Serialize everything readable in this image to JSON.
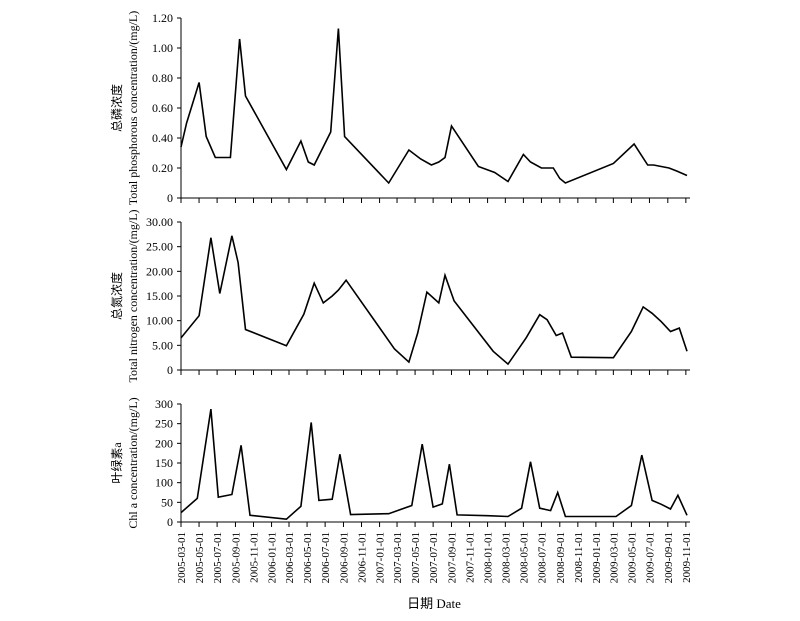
{
  "chart_data": [
    {
      "type": "line",
      "ylabel_cn": "总磷浓度",
      "ylabel": "Total phosphorous concentration/(mg/L)",
      "ylim": [
        0,
        1.2
      ],
      "yticks": [
        "0",
        "0.20",
        "0.40",
        "0.60",
        "0.80",
        "1.00",
        "1.20"
      ],
      "series": [
        {
          "x": [
            "2005-03-01",
            "2005-03-20",
            "2005-05-01",
            "2005-05-25",
            "2005-06-25",
            "2005-08-15",
            "2005-09-15",
            "2005-10-05",
            "2006-02-20",
            "2006-04-10",
            "2006-05-05",
            "2006-05-25",
            "2006-07-20",
            "2006-08-15",
            "2006-09-05",
            "2007-02-01",
            "2007-04-10",
            "2007-05-20",
            "2007-06-25",
            "2007-07-20",
            "2007-08-10",
            "2007-09-01",
            "2007-12-01",
            "2008-01-25",
            "2008-03-10",
            "2008-05-01",
            "2008-05-25",
            "2008-07-01",
            "2008-08-10",
            "2008-09-01",
            "2008-09-20",
            "2009-03-01",
            "2009-05-10",
            "2009-06-25",
            "2009-07-15",
            "2009-08-10",
            "2009-09-05",
            "2009-10-01",
            "2009-11-05"
          ],
          "values": [
            0.34,
            0.5,
            0.77,
            0.41,
            0.27,
            0.27,
            1.06,
            0.68,
            0.19,
            0.38,
            0.24,
            0.22,
            0.44,
            1.13,
            0.41,
            0.1,
            0.32,
            0.26,
            0.22,
            0.24,
            0.27,
            0.48,
            0.21,
            0.17,
            0.11,
            0.29,
            0.24,
            0.2,
            0.2,
            0.13,
            0.1,
            0.23,
            0.36,
            0.22,
            0.22,
            0.21,
            0.2,
            0.18,
            0.15
          ]
        }
      ]
    },
    {
      "type": "line",
      "ylabel_cn": "总氮浓度",
      "ylabel": "Total nitrogen concentration/(mg/L)",
      "ylim": [
        0,
        30
      ],
      "yticks": [
        "0",
        "5.00",
        "10.00",
        "15.00",
        "20.00",
        "25.00",
        "30.00"
      ],
      "series": [
        {
          "x": [
            "2005-03-01",
            "2005-05-01",
            "2005-06-10",
            "2005-07-10",
            "2005-08-20",
            "2005-09-10",
            "2005-10-05",
            "2006-02-20",
            "2006-04-20",
            "2006-05-25",
            "2006-06-25",
            "2006-07-25",
            "2006-08-15",
            "2006-09-10",
            "2007-02-20",
            "2007-04-10",
            "2007-05-10",
            "2007-06-10",
            "2007-07-20",
            "2007-08-10",
            "2007-09-10",
            "2008-01-20",
            "2008-03-10",
            "2008-05-10",
            "2008-06-25",
            "2008-07-20",
            "2008-08-20",
            "2008-09-10",
            "2008-10-10",
            "2009-03-01",
            "2009-05-01",
            "2009-06-10",
            "2009-07-10",
            "2009-08-10",
            "2009-09-10",
            "2009-10-10",
            "2009-11-05"
          ],
          "values": [
            6.5,
            11,
            26.8,
            15.5,
            27.2,
            21.8,
            8.2,
            4.9,
            11.3,
            17.6,
            13.6,
            15,
            16.2,
            18.2,
            4.3,
            1.6,
            7.5,
            15.8,
            13.6,
            19.2,
            14,
            3.8,
            1.2,
            6.5,
            11.2,
            10.2,
            7,
            7.5,
            2.6,
            2.5,
            7.8,
            12.8,
            11.5,
            9.8,
            7.8,
            8.5,
            3.8
          ]
        }
      ]
    },
    {
      "type": "line",
      "ylabel_cn": "叶绿素a",
      "ylabel": "Chl a concentration/(mg/L)",
      "ylim": [
        0,
        300
      ],
      "yticks": [
        "0",
        "50",
        "100",
        "150",
        "200",
        "250",
        "300"
      ],
      "series": [
        {
          "x": [
            "2005-03-01",
            "2005-04-25",
            "2005-06-10",
            "2005-07-05",
            "2005-08-20",
            "2005-09-20",
            "2005-10-20",
            "2006-02-20",
            "2006-04-10",
            "2006-05-15",
            "2006-06-10",
            "2006-07-25",
            "2006-08-20",
            "2006-09-25",
            "2007-02-01",
            "2007-04-20",
            "2007-05-25",
            "2007-07-01",
            "2007-08-01",
            "2007-08-25",
            "2007-09-20",
            "2008-01-01",
            "2008-03-10",
            "2008-04-25",
            "2008-05-25",
            "2008-06-25",
            "2008-08-01",
            "2008-08-25",
            "2008-09-20",
            "2009-03-10",
            "2009-05-01",
            "2009-06-05",
            "2009-07-10",
            "2009-08-10",
            "2009-09-10",
            "2009-10-05",
            "2009-11-05"
          ],
          "values": [
            24,
            60,
            287,
            63,
            70,
            195,
            17,
            7,
            40,
            253,
            55,
            58,
            172,
            19,
            21,
            42,
            198,
            38,
            46,
            147,
            18,
            16,
            14,
            35,
            153,
            35,
            29,
            75,
            14,
            14,
            42,
            170,
            55,
            45,
            33,
            68,
            17
          ]
        }
      ]
    }
  ],
  "x_axis": {
    "ticks": [
      "2005-03-01",
      "2005-05-01",
      "2005-07-01",
      "2005-09-01",
      "2005-11-01",
      "2006-01-01",
      "2006-03-01",
      "2006-05-01",
      "2006-07-01",
      "2006-09-01",
      "2006-11-01",
      "2007-01-01",
      "2007-03-01",
      "2007-05-01",
      "2007-07-01",
      "2007-09-01",
      "2007-11-01",
      "2008-01-01",
      "2008-03-01",
      "2008-05-01",
      "2008-07-01",
      "2008-09-01",
      "2008-11-01",
      "2009-01-01",
      "2009-03-01",
      "2009-05-01",
      "2009-07-01",
      "2009-09-01",
      "2009-11-01"
    ],
    "title": "日期 Date"
  }
}
